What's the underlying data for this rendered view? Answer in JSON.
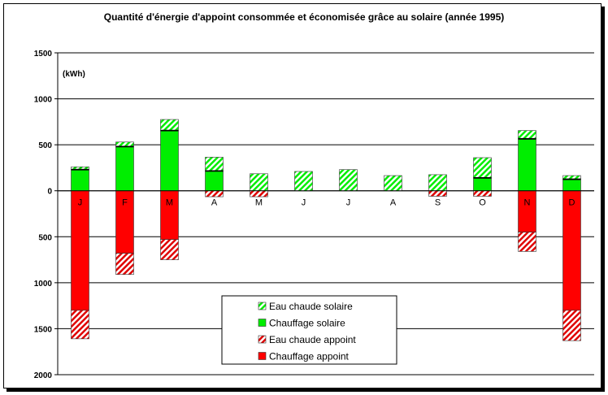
{
  "chart_data": {
    "type": "bar",
    "stacked": true,
    "title": "Quantité d'énergie d'appoint consommée et économisée grâce au solaire (année 1995)",
    "unit_label": "(kWh)",
    "categories": [
      "J",
      "F",
      "M",
      "A",
      "M",
      "J",
      "J",
      "A",
      "S",
      "O",
      "N",
      "D"
    ],
    "y_tick_labels": [
      "1500",
      "1000",
      "500",
      "0",
      "500",
      "1000",
      "1500",
      "2000"
    ],
    "y_ticks": [
      1500,
      1000,
      500,
      0,
      -500,
      -1000,
      -1500,
      -2000
    ],
    "ylim": [
      -2000,
      1500
    ],
    "grid": true,
    "legend_position": "bottom-center",
    "series": [
      {
        "name": "Eau chaude solaire",
        "color": "#00ee00",
        "pattern": "hatched",
        "values": [
          30,
          50,
          120,
          150,
          185,
          210,
          230,
          165,
          175,
          220,
          90,
          40
        ]
      },
      {
        "name": "Chauffage solaire",
        "color": "#00ee00",
        "pattern": "solid",
        "values": [
          230,
          480,
          655,
          215,
          0,
          0,
          0,
          0,
          0,
          140,
          565,
          125
        ]
      },
      {
        "name": "Eau chaude appoint",
        "color": "#ff0000",
        "pattern": "hatched",
        "values": [
          -310,
          -230,
          -220,
          -65,
          -65,
          0,
          0,
          0,
          -60,
          -60,
          -210,
          -330
        ]
      },
      {
        "name": "Chauffage appoint",
        "color": "#ff0000",
        "pattern": "solid",
        "values": [
          -1300,
          -680,
          -530,
          0,
          0,
          0,
          0,
          0,
          0,
          0,
          -450,
          -1300
        ]
      }
    ]
  }
}
